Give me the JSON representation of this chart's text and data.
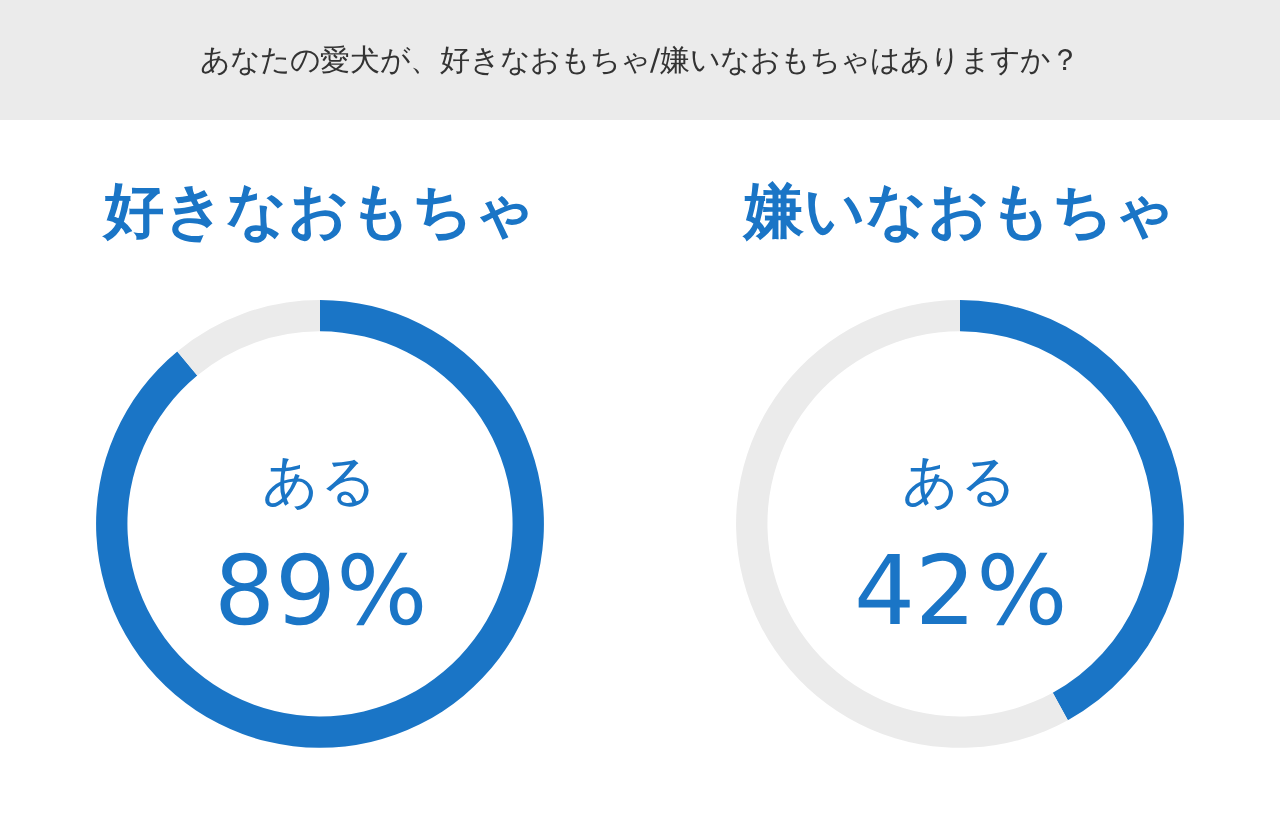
{
  "chart_data": [
    {
      "type": "donut",
      "title": "好きなおもちゃ",
      "annotations": [
        "あなたの愛犬が、好きなおもちゃ/嫌いなおもちゃはありますか？"
      ],
      "categories": [
        "ある",
        null
      ],
      "values": [
        89,
        11
      ],
      "colors": [
        "#1a75c6",
        "#ebebeb"
      ],
      "value_labels": [
        "89%",
        null
      ]
    },
    {
      "type": "donut",
      "title": "嫌いなおもちゃ",
      "categories": [
        "ある",
        null
      ],
      "values": [
        42,
        58
      ],
      "colors": [
        "#1a75c6",
        "#ebebeb"
      ],
      "value_labels": [
        "42%",
        null
      ]
    }
  ]
}
